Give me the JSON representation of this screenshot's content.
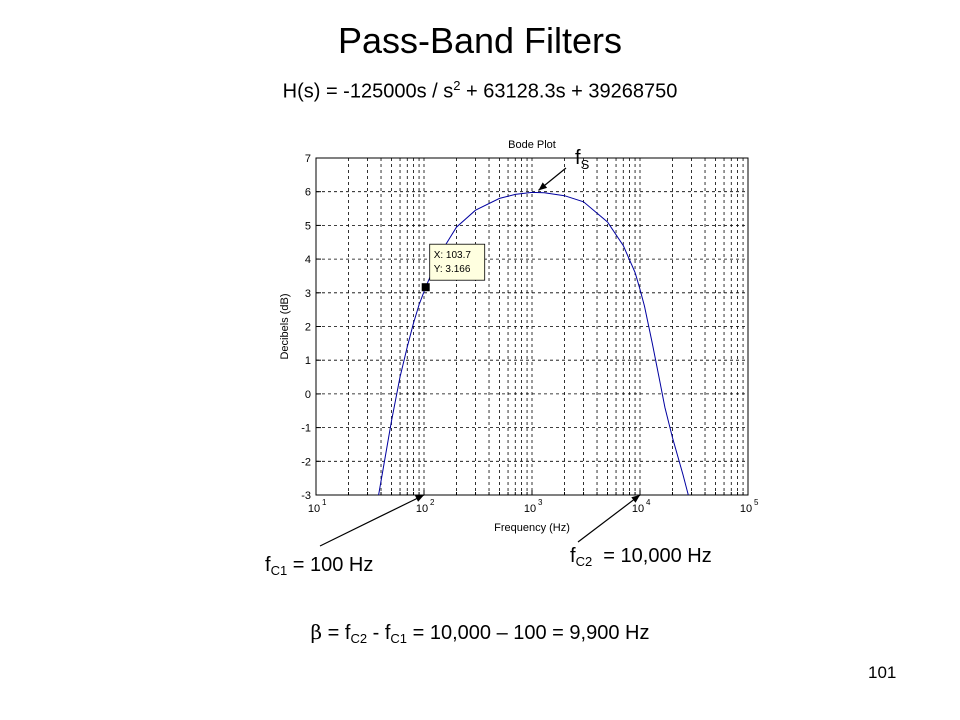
{
  "slide": {
    "title": "Pass-Band Filters",
    "formula": {
      "before_sup": "H(s) = -125000s / s",
      "sup": "2",
      "after_sup": " + 63128.3s + 39268750"
    },
    "fc1": {
      "f": "f",
      "sub": "C1",
      "rest": " = 100 Hz"
    },
    "fc2": {
      "f": "f",
      "sub": "C2",
      "rest": "  = 10,000 Hz"
    },
    "fs": {
      "f": "f",
      "sub": "S"
    },
    "beta": {
      "beta_symbol": "β",
      "mid1": " = f",
      "sub1": "C2",
      "mid2": " - f",
      "sub2": "C1",
      "rest": " = 10,000 – 100 = 9,900 Hz"
    },
    "page_number": "101"
  },
  "chart_data": {
    "type": "line",
    "title": "Bode Plot",
    "xlabel": "Frequency (Hz)",
    "ylabel": "Decibels (dB)",
    "x_scale": "log",
    "xlim": [
      10,
      100000
    ],
    "ylim": [
      -3,
      7
    ],
    "x_ticks": [
      {
        "base": "10",
        "exp": "1"
      },
      {
        "base": "10",
        "exp": "2"
      },
      {
        "base": "10",
        "exp": "3"
      },
      {
        "base": "10",
        "exp": "4"
      },
      {
        "base": "10",
        "exp": "5"
      }
    ],
    "y_ticks": [
      "7",
      "6",
      "5",
      "4",
      "3",
      "2",
      "1",
      "0",
      "-1",
      "-2",
      "-3"
    ],
    "grid": true,
    "line_color": "#0000a0",
    "series": [
      {
        "x": [
          38,
          42,
          50,
          60,
          70,
          80,
          90,
          103.7,
          120,
          150,
          200,
          300,
          500,
          700,
          1000,
          1300,
          2000,
          3000,
          5000,
          7000,
          9000,
          10000,
          11000,
          13000,
          15000,
          17000,
          20000,
          25000,
          28000
        ],
        "y": [
          -3.0,
          -2.2,
          -0.8,
          0.5,
          1.4,
          2.1,
          2.65,
          3.166,
          3.65,
          4.3,
          4.95,
          5.45,
          5.8,
          5.92,
          5.98,
          5.97,
          5.88,
          5.7,
          5.1,
          4.4,
          3.6,
          3.1,
          2.6,
          1.5,
          0.5,
          -0.4,
          -1.3,
          -2.4,
          -3.0
        ]
      }
    ],
    "datatip": {
      "x_text": "X: 103.7",
      "y_text": "Y: 3.166",
      "x": 103.7,
      "y": 3.166
    },
    "fs_point": {
      "x": 1100,
      "y": 5.98
    },
    "fc1_point": {
      "x": 100,
      "y": -3
    },
    "fc2_point": {
      "x": 10000,
      "y": -3
    }
  }
}
